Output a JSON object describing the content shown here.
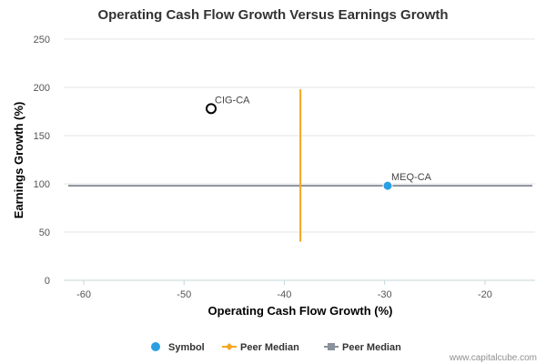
{
  "chart_data": {
    "type": "scatter",
    "title": "Operating Cash Flow Growth Versus Earnings Growth",
    "xlabel": "Operating Cash Flow Growth (%)",
    "ylabel": "Earnings Growth (%)",
    "xlim": [
      -62,
      -15
    ],
    "ylim": [
      0,
      250
    ],
    "x_ticks": [
      -60,
      -50,
      -40,
      -30,
      -20
    ],
    "y_ticks": [
      0,
      50,
      100,
      150,
      200,
      250
    ],
    "grid": "horizontal",
    "points": [
      {
        "label": "CIG-CA",
        "x": -47.3,
        "y": 178,
        "style": "hollow",
        "color": "#000000"
      },
      {
        "label": "MEQ-CA",
        "x": -29.7,
        "y": 98,
        "style": "filled",
        "color": "#2b9fe3"
      }
    ],
    "peer_median_x": {
      "x": -38.4,
      "y_range": [
        40,
        198
      ],
      "color": "#f5a623"
    },
    "peer_median_y": {
      "y": 98,
      "color": "#8a919c"
    },
    "legend": {
      "position": "bottom",
      "items": [
        {
          "label": "Symbol",
          "marker": "circle",
          "color": "#2b9fe3"
        },
        {
          "label": "Peer Median",
          "marker": "line-diamond",
          "color": "#f5a623"
        },
        {
          "label": "Peer Median",
          "marker": "line-square",
          "color": "#8a919c"
        }
      ]
    }
  },
  "credit": "www.capitalcube.com"
}
